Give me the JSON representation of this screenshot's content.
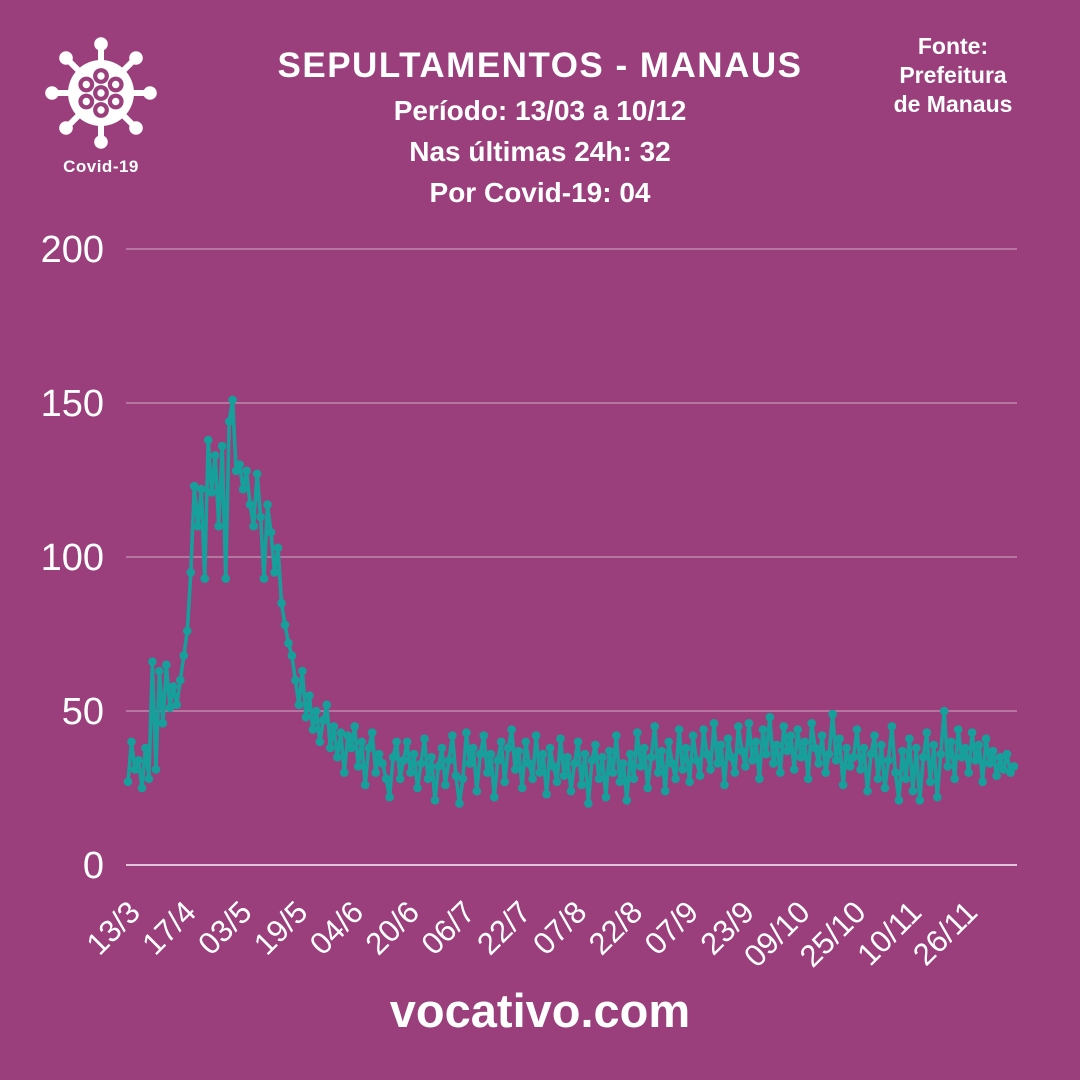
{
  "page": {
    "background": "#9A3E7C",
    "accent_teal": "#17A09B",
    "text_color": "#FFFFFF"
  },
  "header": {
    "badge_label": "Covid-19",
    "title": "SEPULTAMENTOS - MANAUS",
    "period_line": "Período: 13/03 a 10/12",
    "last24_line": "Nas últimas 24h: 32",
    "covid_line": "Por Covid-19: 04",
    "source_line1": "Fonte:",
    "source_line2": "Prefeitura",
    "source_line3": "de Manaus"
  },
  "footer": {
    "site_label": "vocativo.com"
  },
  "chart_data": {
    "type": "line",
    "title": "SEPULTAMENTOS - MANAUS",
    "xlabel": "",
    "ylabel": "",
    "ylim": [
      0,
      200
    ],
    "y_ticks": [
      0,
      50,
      100,
      150,
      200
    ],
    "grid": "horizontal",
    "legend": "none",
    "line_color": "#17A09B",
    "marker": "circle",
    "x_tick_labels": [
      "13/3",
      "17/4",
      "03/5",
      "19/5",
      "04/6",
      "20/6",
      "06/7",
      "22/7",
      "07/8",
      "22/8",
      "07/9",
      "23/9",
      "09/10",
      "25/10",
      "10/11",
      "26/11"
    ],
    "x_tick_indices": [
      0,
      16,
      32,
      48,
      64,
      80,
      96,
      112,
      128,
      144,
      160,
      176,
      192,
      208,
      224,
      240
    ],
    "values": [
      27,
      40,
      31,
      34,
      25,
      38,
      28,
      66,
      31,
      63,
      46,
      65,
      51,
      58,
      52,
      60,
      68,
      76,
      95,
      123,
      110,
      122,
      93,
      138,
      121,
      133,
      110,
      136,
      93,
      144,
      151,
      128,
      130,
      122,
      128,
      117,
      110,
      127,
      113,
      93,
      117,
      108,
      95,
      103,
      85,
      78,
      72,
      68,
      60,
      52,
      63,
      48,
      55,
      44,
      50,
      40,
      47,
      52,
      38,
      45,
      35,
      43,
      30,
      42,
      38,
      45,
      32,
      40,
      26,
      38,
      43,
      30,
      36,
      33,
      28,
      22,
      35,
      40,
      28,
      34,
      40,
      30,
      36,
      25,
      33,
      41,
      28,
      35,
      21,
      32,
      38,
      26,
      34,
      42,
      29,
      20,
      28,
      43,
      33,
      38,
      24,
      36,
      42,
      30,
      36,
      22,
      34,
      40,
      27,
      38,
      44,
      31,
      37,
      25,
      40,
      33,
      28,
      42,
      30,
      36,
      23,
      38,
      32,
      27,
      41,
      29,
      35,
      24,
      33,
      40,
      26,
      36,
      20,
      34,
      39,
      28,
      35,
      22,
      37,
      30,
      42,
      27,
      33,
      21,
      36,
      28,
      43,
      32,
      38,
      25,
      35,
      45,
      30,
      37,
      24,
      40,
      33,
      28,
      44,
      31,
      38,
      27,
      42,
      34,
      29,
      44,
      36,
      31,
      46,
      33,
      39,
      26,
      41,
      35,
      30,
      45,
      37,
      32,
      46,
      34,
      40,
      28,
      44,
      36,
      48,
      33,
      39,
      30,
      45,
      37,
      42,
      31,
      44,
      35,
      40,
      28,
      46,
      38,
      33,
      42,
      30,
      36,
      49,
      34,
      41,
      26,
      38,
      32,
      35,
      44,
      31,
      38,
      24,
      36,
      42,
      28,
      39,
      25,
      34,
      45,
      30,
      21,
      37,
      28,
      41,
      24,
      38,
      21,
      35,
      43,
      27,
      39,
      22,
      36,
      50,
      32,
      40,
      28,
      44,
      35,
      38,
      30,
      43,
      34,
      39,
      27,
      41,
      33,
      37,
      29,
      35,
      31,
      36,
      30,
      32
    ]
  }
}
